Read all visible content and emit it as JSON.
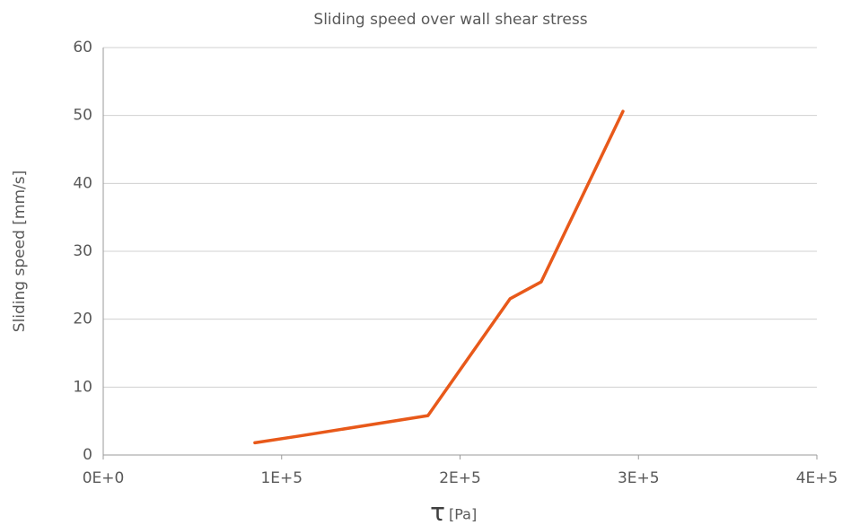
{
  "chart_data": {
    "type": "line",
    "title": "Sliding speed over wall shear stress",
    "x_label": {
      "symbol": "τ",
      "unit": "[Pa]"
    },
    "y_label": "Sliding speed [mm/s]",
    "x": [
      85000,
      110000,
      182000,
      228000,
      245500,
      291300
    ],
    "series": [
      {
        "name": "Sliding speed",
        "color": "#e8591a",
        "values": [
          1.8,
          2.8,
          5.8,
          23.0,
          25.5,
          50.6
        ]
      }
    ],
    "xlim": [
      0,
      400000
    ],
    "xticks": [
      {
        "value": 0,
        "label": "0E+0"
      },
      {
        "value": 100000,
        "label": "1E+5"
      },
      {
        "value": 200000,
        "label": "2E+5"
      },
      {
        "value": 300000,
        "label": "3E+5"
      },
      {
        "value": 400000,
        "label": "4E+5"
      }
    ],
    "ylim": [
      0,
      60
    ],
    "yticks": [
      0,
      10,
      20,
      30,
      40,
      50,
      60
    ],
    "grid": true
  }
}
